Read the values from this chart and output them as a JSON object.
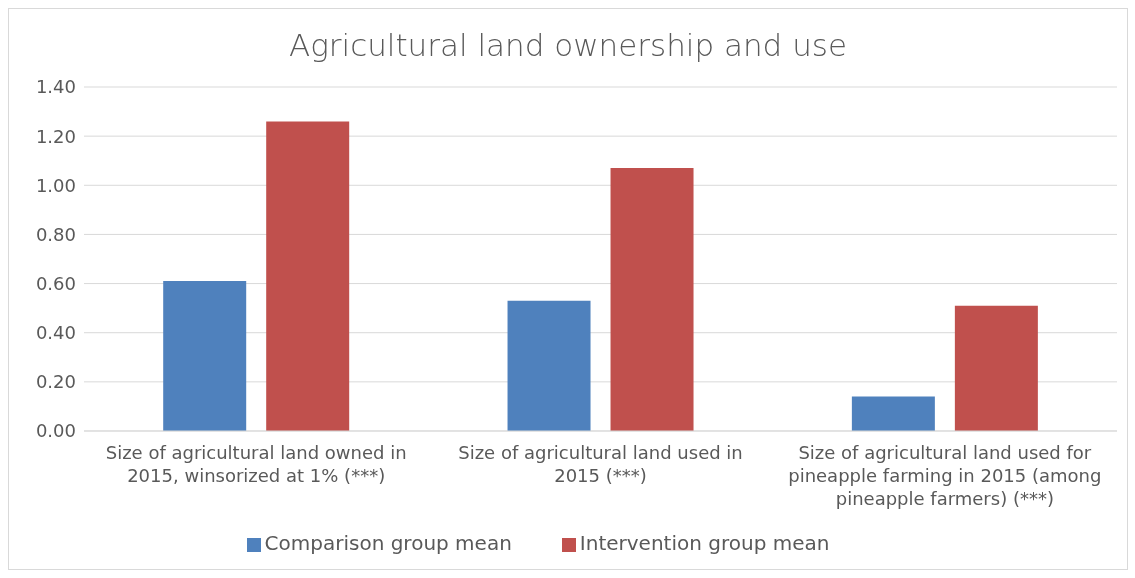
{
  "chart_data": {
    "type": "bar",
    "title": "Agricultural land ownership and use",
    "categories": [
      "Size of agricultural land owned in 2015, winsorized at 1% (***)",
      "Size of agricultural land used in 2015 (***)",
      "Size of agricultural land used for pineapple farming in 2015 (among pineapple farmers) (***)"
    ],
    "series": [
      {
        "name": "Comparison group mean",
        "color": "#4f81bd",
        "values": [
          0.61,
          0.53,
          0.14
        ]
      },
      {
        "name": "Intervention group mean",
        "color": "#c0504d",
        "values": [
          1.26,
          1.07,
          0.51
        ]
      }
    ],
    "ylim": [
      0,
      1.4
    ],
    "yticks": [
      {
        "value": 0,
        "label": "0.00"
      },
      {
        "value": 0.2,
        "label": "0.20"
      },
      {
        "value": 0.4,
        "label": "0.40"
      },
      {
        "value": 0.6,
        "label": "0.60"
      },
      {
        "value": 0.8,
        "label": "0.80"
      },
      {
        "value": 1.0,
        "label": "1.00"
      },
      {
        "value": 1.2,
        "label": "1.20"
      },
      {
        "value": 1.4,
        "label": "1.40"
      }
    ],
    "grid": "y",
    "legend": "bottom"
  }
}
